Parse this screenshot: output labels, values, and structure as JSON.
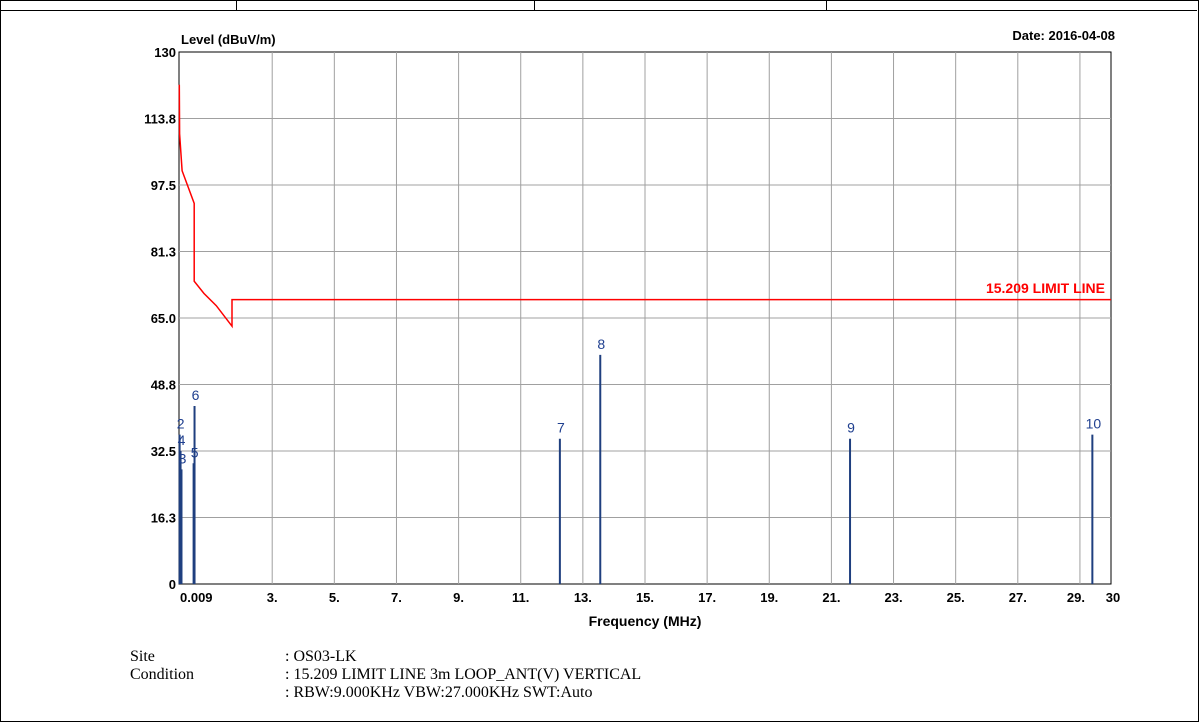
{
  "date_label": "Date: 2016-04-08",
  "limit_line_label": "15.209 LIMIT LINE",
  "colors": {
    "limit_line": "#ff0000",
    "emission": "#1f3f7f",
    "marker_label": "#1f3f8f",
    "grid": "#a0a0a0"
  },
  "chart_data": {
    "type": "line",
    "ylabel": "Level (dBuV/m)",
    "xlabel": "Frequency (MHz)",
    "ylim": [
      0,
      130
    ],
    "xlim": [
      0,
      30
    ],
    "y_ticks": [
      "0",
      "16.3",
      "32.5",
      "48.8",
      "65.0",
      "81.3",
      "97.5",
      "113.8",
      "130"
    ],
    "x_ticks": [
      "0.009",
      "3.",
      "5.",
      "7.",
      "9.",
      "11.",
      "13.",
      "15.",
      "17.",
      "19.",
      "21.",
      "23.",
      "25.",
      "27.",
      "29.",
      "30"
    ],
    "grid": true,
    "limit_line": {
      "name": "15.209 LIMIT LINE",
      "points": [
        [
          0.009,
          122
        ],
        [
          0.02,
          110
        ],
        [
          0.1,
          101
        ],
        [
          0.49,
          93
        ],
        [
          0.49,
          74
        ],
        [
          0.8,
          71
        ],
        [
          1.2,
          68
        ],
        [
          1.705,
          63
        ],
        [
          1.705,
          69.5
        ],
        [
          30,
          69.5
        ]
      ]
    },
    "markers": [
      {
        "label": "2",
        "freq": 0.02,
        "level": 36.5
      },
      {
        "label": "4",
        "freq": 0.05,
        "level": 32.5
      },
      {
        "label": "3",
        "freq": 0.08,
        "level": 28
      },
      {
        "label": "5",
        "freq": 0.47,
        "level": 29.5
      },
      {
        "label": "6",
        "freq": 0.5,
        "level": 43.5
      },
      {
        "label": "7",
        "freq": 12.26,
        "level": 35.5
      },
      {
        "label": "8",
        "freq": 13.56,
        "level": 56
      },
      {
        "label": "9",
        "freq": 21.6,
        "level": 35.5
      },
      {
        "label": "10",
        "freq": 29.4,
        "level": 36.5
      }
    ]
  },
  "info": {
    "site_label": "Site",
    "site_value": ": OS03-LK",
    "condition_label": "Condition",
    "condition_value": ": 15.209 LIMIT LINE 3m LOOP_ANT(V) VERTICAL",
    "condition_value_2": ": RBW:9.000KHz VBW:27.000KHz SWT:Auto"
  }
}
